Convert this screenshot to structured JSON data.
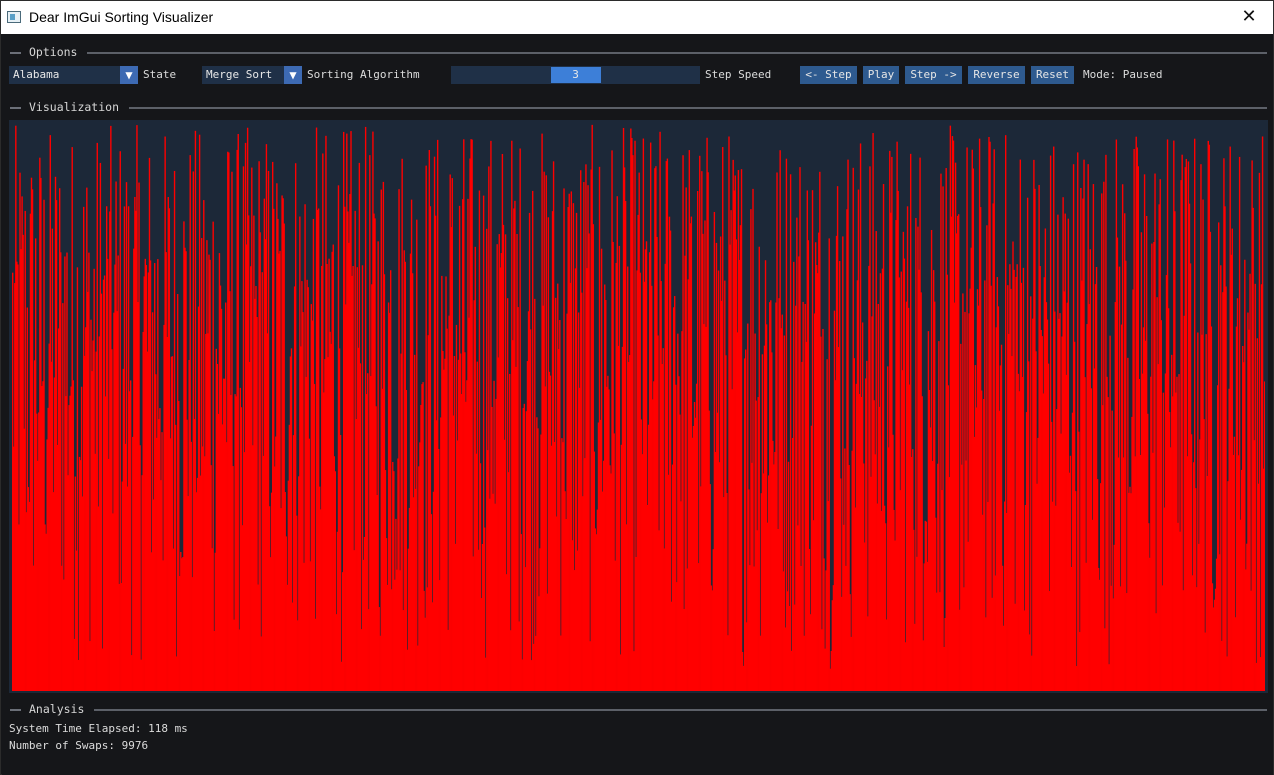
{
  "window": {
    "title": "Dear ImGui Sorting Visualizer",
    "close_glyph": "✕"
  },
  "options": {
    "header": "Options",
    "state_combo": {
      "value": "Alabama",
      "label": "State",
      "arrow": "▼"
    },
    "algorithm_combo": {
      "value": "Merge Sort",
      "label": "Sorting Algorithm",
      "arrow": "▼"
    },
    "speed_slider": {
      "value": "3",
      "label": "Step Speed"
    },
    "buttons": {
      "step_back": "<- Step",
      "play": "Play",
      "step_forward": "Step ->",
      "reverse": "Reverse",
      "reset": "Reset"
    },
    "mode_text": "Mode: Paused"
  },
  "visualization": {
    "header": "Visualization",
    "bar_color": "#ff0000",
    "background_color": "#1c2838",
    "bar_count": 1200
  },
  "analysis": {
    "header": "Analysis",
    "time_elapsed": "System Time Elapsed: 118 ms",
    "swaps": "Number of Swaps: 9976"
  }
}
